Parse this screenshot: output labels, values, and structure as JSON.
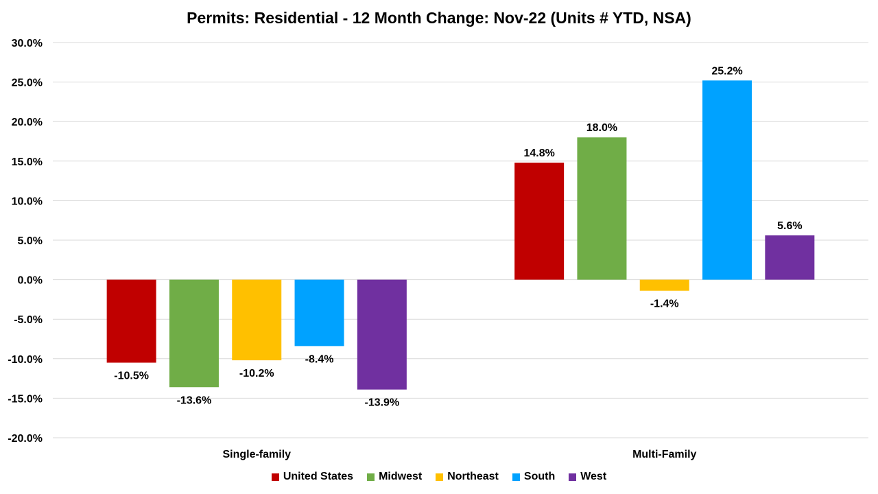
{
  "chart_data": {
    "type": "bar",
    "title": "Permits: Residential - 12 Month Change:  Nov-22 (Units # YTD, NSA)",
    "xlabel": "",
    "ylabel": "",
    "categories": [
      "Single-family",
      "Multi-Family"
    ],
    "series": [
      {
        "name": "United States",
        "color": "#C00000",
        "values": [
          -10.5,
          14.8
        ],
        "labels": [
          "-10.5%",
          "14.8%"
        ]
      },
      {
        "name": "Midwest",
        "color": "#70AD47",
        "values": [
          -13.6,
          18.0
        ],
        "labels": [
          "-13.6%",
          "18.0%"
        ]
      },
      {
        "name": "Northeast",
        "color": "#FFC000",
        "values": [
          -10.2,
          -1.4
        ],
        "labels": [
          "-10.2%",
          "-1.4%"
        ]
      },
      {
        "name": "South",
        "color": "#00A2FF",
        "values": [
          -8.4,
          25.2
        ],
        "labels": [
          "-8.4%",
          "25.2%"
        ]
      },
      {
        "name": "West",
        "color": "#7030A0",
        "values": [
          -13.9,
          5.6
        ],
        "labels": [
          "-13.9%",
          "5.6%"
        ]
      }
    ],
    "ylim": [
      -20,
      30
    ],
    "yticks": [
      30,
      25,
      20,
      15,
      10,
      5,
      0,
      -5,
      -10,
      -15,
      -20
    ],
    "ytick_labels": [
      "30.0%",
      "25.0%",
      "20.0%",
      "15.0%",
      "10.0%",
      "5.0%",
      "0.0%",
      "-5.0%",
      "-10.0%",
      "-15.0%",
      "-20.0%"
    ],
    "grid": true,
    "legend_position": "bottom"
  }
}
